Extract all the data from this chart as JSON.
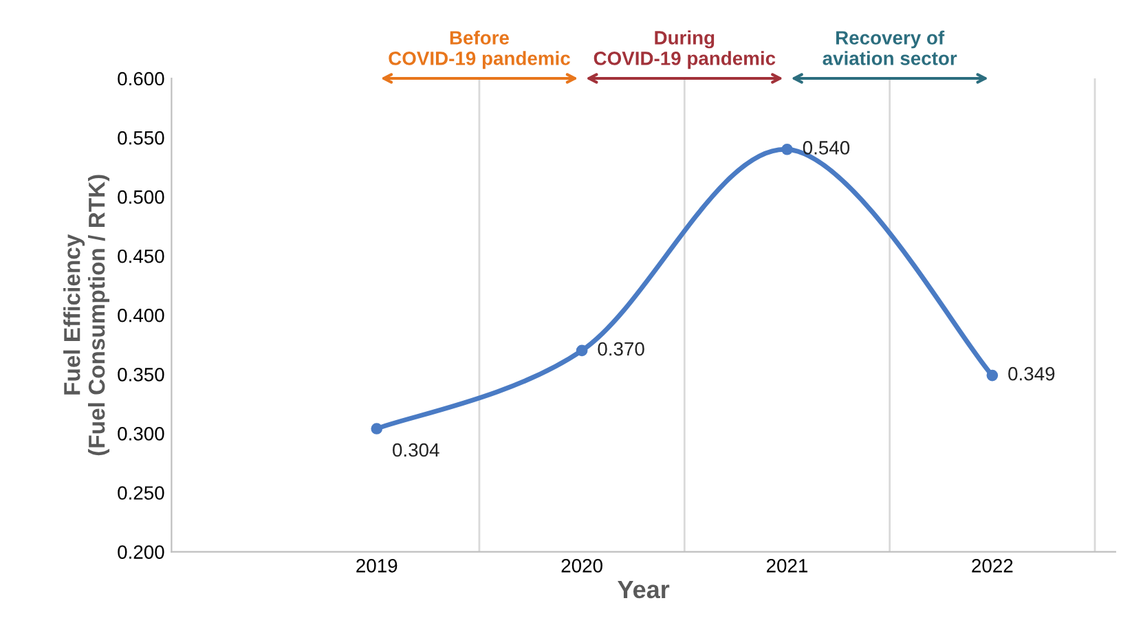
{
  "chart_data": {
    "type": "line",
    "xlabel": "Year",
    "ylabel": "Fuel Efficiency\n(Fuel Consumption / RTK)",
    "categories": [
      "2019",
      "2020",
      "2021",
      "2022"
    ],
    "series": [
      {
        "color": "#4a7bc4",
        "values": [
          0.304,
          0.37,
          0.54,
          0.349
        ],
        "value_labels": [
          "0.304",
          "0.370",
          "0.540",
          "0.349"
        ]
      }
    ],
    "ylim": [
      0.2,
      0.6
    ],
    "yticks": [
      {
        "value": 0.2,
        "label": "0.200"
      },
      {
        "value": 0.25,
        "label": "0.250"
      },
      {
        "value": 0.3,
        "label": "0.300"
      },
      {
        "value": 0.35,
        "label": "0.350"
      },
      {
        "value": 0.4,
        "label": "0.400"
      },
      {
        "value": 0.45,
        "label": "0.450"
      },
      {
        "value": 0.5,
        "label": "0.500"
      },
      {
        "value": 0.55,
        "label": "0.550"
      },
      {
        "value": 0.6,
        "label": "0.600"
      }
    ],
    "annotations": [
      "Before\nCOVID-19 pandemic",
      "During\nCOVID-19 pandemic",
      "Recovery of\naviation sector"
    ],
    "grid": "x",
    "marker": "circle",
    "line_style": "solid"
  }
}
